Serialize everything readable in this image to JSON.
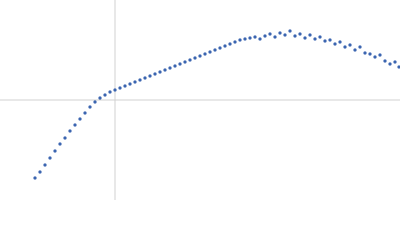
{
  "chart_data": {
    "type": "scatter",
    "color": "#3b65b0",
    "zero_lines": true,
    "xlim": [
      -1.15,
      2.85
    ],
    "ylim": [
      -1,
      1
    ],
    "x": [
      -0.8,
      -0.75,
      -0.7,
      -0.65,
      -0.6,
      -0.55,
      -0.5,
      -0.45,
      -0.4,
      -0.35,
      -0.3,
      -0.25,
      -0.2,
      -0.15,
      -0.1,
      -0.05,
      0.0,
      0.05,
      0.1,
      0.15,
      0.2,
      0.25,
      0.3,
      0.35,
      0.4,
      0.45,
      0.5,
      0.55,
      0.6,
      0.65,
      0.7,
      0.75,
      0.8,
      0.85,
      0.9,
      0.95,
      1.0,
      1.05,
      1.1,
      1.15,
      1.2,
      1.25,
      1.3,
      1.35,
      1.4,
      1.45,
      1.5,
      1.55,
      1.6,
      1.65,
      1.7,
      1.75,
      1.8,
      1.85,
      1.9,
      1.95,
      2.0,
      2.05,
      2.1,
      2.15,
      2.2,
      2.25,
      2.3,
      2.35,
      2.4,
      2.45,
      2.5,
      2.55,
      2.6,
      2.65,
      2.7,
      2.75,
      2.8,
      2.84
    ],
    "values": [
      -0.78,
      -0.72,
      -0.65,
      -0.58,
      -0.51,
      -0.44,
      -0.38,
      -0.31,
      -0.25,
      -0.19,
      -0.13,
      -0.07,
      -0.02,
      0.02,
      0.05,
      0.08,
      0.1,
      0.12,
      0.14,
      0.16,
      0.18,
      0.2,
      0.22,
      0.24,
      0.26,
      0.28,
      0.3,
      0.32,
      0.34,
      0.36,
      0.38,
      0.4,
      0.42,
      0.44,
      0.46,
      0.48,
      0.5,
      0.52,
      0.54,
      0.56,
      0.58,
      0.6,
      0.61,
      0.62,
      0.63,
      0.61,
      0.64,
      0.66,
      0.63,
      0.67,
      0.65,
      0.69,
      0.64,
      0.66,
      0.62,
      0.65,
      0.61,
      0.63,
      0.59,
      0.6,
      0.56,
      0.58,
      0.53,
      0.55,
      0.5,
      0.53,
      0.47,
      0.46,
      0.43,
      0.45,
      0.39,
      0.36,
      0.38,
      0.33
    ]
  }
}
